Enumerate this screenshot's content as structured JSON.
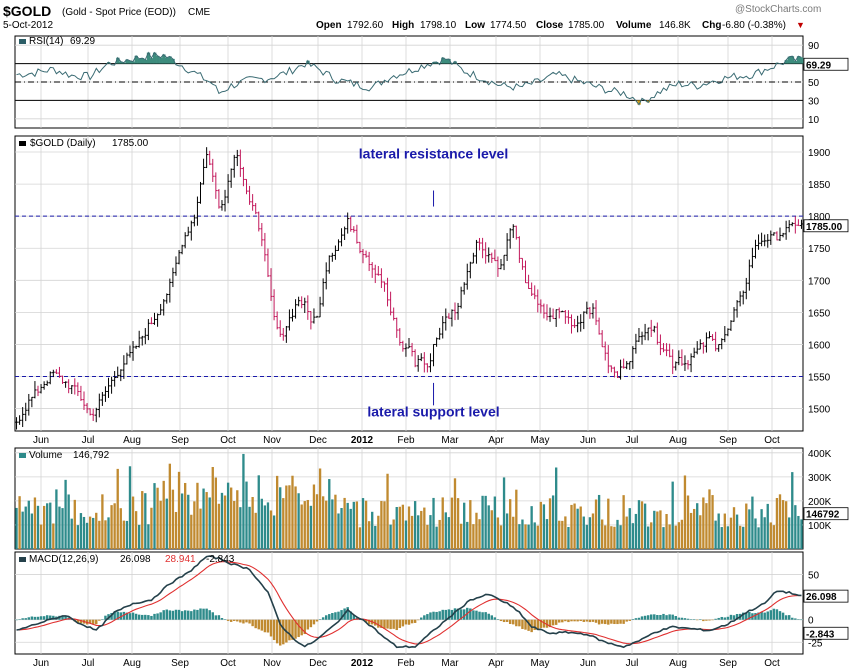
{
  "header": {
    "symbol": "$GOLD",
    "description": "(Gold - Spot Price (EOD))",
    "exchange": "CME",
    "date": "5-Oct-2012",
    "watermark": "@StockCharts.com",
    "open_label": "Open",
    "open": "1792.60",
    "high_label": "High",
    "high": "1798.10",
    "low_label": "Low",
    "low": "1774.50",
    "close_label": "Close",
    "close": "1785.00",
    "volume_label": "Volume",
    "volume": "146.8K",
    "chg_label": "Chg",
    "chg": "-6.80 (-0.38%)"
  },
  "colors": {
    "up": "#000000",
    "down": "#c2185b",
    "vol_up": "#2e8b8b",
    "vol_down": "#c08a30",
    "macd": "#24404a",
    "signal": "#e03030",
    "rsi": "#3a6b73",
    "fill": "#3d8c7d",
    "annotation": "#1a1aaa",
    "grid": "#d4d4d4"
  },
  "x_labels": [
    "Jun",
    "Jul",
    "Aug",
    "Sep",
    "Oct",
    "Nov",
    "Dec",
    "2012",
    "Feb",
    "Mar",
    "Apr",
    "May",
    "Jun",
    "Jul",
    "Aug",
    "Sep",
    "Oct"
  ],
  "chart_data": [
    {
      "type": "line",
      "title": "RSI(14) 69.29",
      "legend": "RSI(14)",
      "legend_value": "69.29",
      "yticks": [
        90,
        70,
        50,
        30,
        10
      ],
      "ylim": [
        0,
        100
      ],
      "guides": [
        70,
        30
      ],
      "midline": 50,
      "last_label": "69.29",
      "anchors": [
        [
          0,
          58
        ],
        [
          6,
          60
        ],
        [
          12,
          64
        ],
        [
          18,
          57
        ],
        [
          24,
          56
        ],
        [
          30,
          70
        ],
        [
          36,
          74
        ],
        [
          42,
          78
        ],
        [
          48,
          79
        ],
        [
          52,
          72
        ],
        [
          56,
          64
        ],
        [
          60,
          56
        ],
        [
          64,
          48
        ],
        [
          66,
          38
        ],
        [
          70,
          46
        ],
        [
          76,
          52
        ],
        [
          82,
          54
        ],
        [
          88,
          60
        ],
        [
          94,
          70
        ],
        [
          98,
          65
        ],
        [
          104,
          53
        ],
        [
          110,
          48
        ],
        [
          116,
          44
        ],
        [
          122,
          56
        ],
        [
          128,
          62
        ],
        [
          134,
          70
        ],
        [
          140,
          75
        ],
        [
          146,
          62
        ],
        [
          152,
          54
        ],
        [
          158,
          46
        ],
        [
          164,
          44
        ],
        [
          170,
          50
        ],
        [
          176,
          58
        ],
        [
          182,
          52
        ],
        [
          188,
          46
        ],
        [
          194,
          40
        ],
        [
          198,
          38
        ],
        [
          204,
          28
        ],
        [
          210,
          40
        ],
        [
          216,
          48
        ],
        [
          222,
          46
        ],
        [
          228,
          52
        ],
        [
          234,
          56
        ],
        [
          240,
          58
        ],
        [
          246,
          66
        ],
        [
          252,
          74
        ],
        [
          258,
          74
        ],
        [
          262,
          72
        ],
        [
          266,
          70
        ]
      ]
    },
    {
      "type": "ohlc",
      "title": "$GOLD (Daily) 1785.00",
      "legend": "$GOLD (Daily)",
      "legend_value": "1785.00",
      "yticks": [
        1900,
        1850,
        1800,
        1750,
        1700,
        1650,
        1600,
        1550,
        1500
      ],
      "ylim": [
        1465,
        1925
      ],
      "last_label": "1785.00",
      "resistance": 1800,
      "support": 1550,
      "annotations": [
        {
          "text": "lateral resistance level",
          "x": 136,
          "y": 1890,
          "mark_x": 136,
          "from": 1840,
          "to": 1815
        },
        {
          "text": "lateral support level",
          "x": 136,
          "y": 1488,
          "mark_x": 136,
          "from": 1540,
          "to": 1505
        }
      ],
      "anchors": [
        [
          0,
          1480
        ],
        [
          4,
          1510
        ],
        [
          8,
          1535
        ],
        [
          12,
          1555
        ],
        [
          16,
          1540
        ],
        [
          20,
          1525
        ],
        [
          24,
          1490
        ],
        [
          26,
          1500
        ],
        [
          30,
          1535
        ],
        [
          34,
          1565
        ],
        [
          38,
          1590
        ],
        [
          42,
          1620
        ],
        [
          46,
          1650
        ],
        [
          50,
          1690
        ],
        [
          54,
          1760
        ],
        [
          58,
          1800
        ],
        [
          60,
          1850
        ],
        [
          62,
          1900
        ],
        [
          64,
          1860
        ],
        [
          66,
          1820
        ],
        [
          68,
          1830
        ],
        [
          70,
          1880
        ],
        [
          72,
          1900
        ],
        [
          74,
          1860
        ],
        [
          76,
          1820
        ],
        [
          78,
          1800
        ],
        [
          80,
          1770
        ],
        [
          82,
          1700
        ],
        [
          84,
          1640
        ],
        [
          86,
          1610
        ],
        [
          88,
          1630
        ],
        [
          90,
          1650
        ],
        [
          92,
          1670
        ],
        [
          94,
          1660
        ],
        [
          96,
          1640
        ],
        [
          98,
          1640
        ],
        [
          100,
          1700
        ],
        [
          102,
          1740
        ],
        [
          104,
          1750
        ],
        [
          106,
          1770
        ],
        [
          108,
          1790
        ],
        [
          110,
          1780
        ],
        [
          112,
          1750
        ],
        [
          114,
          1740
        ],
        [
          116,
          1720
        ],
        [
          118,
          1710
        ],
        [
          120,
          1690
        ],
        [
          122,
          1650
        ],
        [
          124,
          1620
        ],
        [
          126,
          1590
        ],
        [
          128,
          1600
        ],
        [
          130,
          1570
        ],
        [
          132,
          1580
        ],
        [
          134,
          1560
        ],
        [
          136,
          1600
        ],
        [
          138,
          1620
        ],
        [
          140,
          1640
        ],
        [
          142,
          1650
        ],
        [
          144,
          1660
        ],
        [
          146,
          1700
        ],
        [
          148,
          1730
        ],
        [
          150,
          1760
        ],
        [
          152,
          1750
        ],
        [
          154,
          1740
        ],
        [
          156,
          1730
        ],
        [
          158,
          1720
        ],
        [
          160,
          1760
        ],
        [
          162,
          1790
        ],
        [
          164,
          1730
        ],
        [
          166,
          1700
        ],
        [
          168,
          1680
        ],
        [
          170,
          1660
        ],
        [
          172,
          1650
        ],
        [
          174,
          1640
        ],
        [
          176,
          1650
        ],
        [
          178,
          1650
        ],
        [
          180,
          1640
        ],
        [
          182,
          1630
        ],
        [
          184,
          1640
        ],
        [
          186,
          1660
        ],
        [
          188,
          1650
        ],
        [
          190,
          1620
        ],
        [
          192,
          1580
        ],
        [
          194,
          1560
        ],
        [
          196,
          1550
        ],
        [
          198,
          1570
        ],
        [
          200,
          1580
        ],
        [
          202,
          1600
        ],
        [
          204,
          1620
        ],
        [
          206,
          1630
        ],
        [
          208,
          1620
        ],
        [
          210,
          1600
        ],
        [
          212,
          1590
        ],
        [
          214,
          1570
        ],
        [
          216,
          1580
        ],
        [
          218,
          1570
        ],
        [
          220,
          1580
        ],
        [
          222,
          1590
        ],
        [
          224,
          1600
        ],
        [
          226,
          1610
        ],
        [
          228,
          1600
        ],
        [
          230,
          1610
        ],
        [
          232,
          1620
        ],
        [
          234,
          1650
        ],
        [
          236,
          1670
        ],
        [
          238,
          1700
        ],
        [
          240,
          1740
        ],
        [
          242,
          1760
        ],
        [
          244,
          1765
        ],
        [
          246,
          1765
        ],
        [
          248,
          1770
        ],
        [
          250,
          1775
        ],
        [
          252,
          1780
        ],
        [
          254,
          1790
        ],
        [
          256,
          1785
        ]
      ]
    },
    {
      "type": "bar",
      "title": "Volume 146,792",
      "legend": "Volume",
      "legend_value": "146,792",
      "yticks": [
        "400K",
        "300K",
        "200K",
        "100K"
      ],
      "ylim": [
        0,
        420000
      ],
      "last_label": "146792"
    },
    {
      "type": "line",
      "title": "MACD(12,26,9) 26.098, 28.941, -2.843",
      "legend": "MACD(12,26,9)",
      "legend_values": [
        "26.098",
        "28.941",
        "-2.843"
      ],
      "yticks": [
        50,
        0,
        -25
      ],
      "ylim": [
        -38,
        75
      ],
      "last_labels": [
        "26.098",
        "-2.843"
      ],
      "anchors": [
        [
          0,
          -12
        ],
        [
          8,
          -3
        ],
        [
          16,
          5
        ],
        [
          20,
          -3
        ],
        [
          26,
          -12
        ],
        [
          32,
          8
        ],
        [
          38,
          18
        ],
        [
          44,
          22
        ],
        [
          50,
          40
        ],
        [
          56,
          52
        ],
        [
          62,
          70
        ],
        [
          66,
          68
        ],
        [
          70,
          62
        ],
        [
          76,
          56
        ],
        [
          82,
          30
        ],
        [
          86,
          -5
        ],
        [
          90,
          -20
        ],
        [
          94,
          -30
        ],
        [
          98,
          -22
        ],
        [
          104,
          -5
        ],
        [
          108,
          10
        ],
        [
          112,
          2
        ],
        [
          116,
          -8
        ],
        [
          120,
          -20
        ],
        [
          124,
          -30
        ],
        [
          130,
          -30
        ],
        [
          136,
          -12
        ],
        [
          142,
          5
        ],
        [
          148,
          22
        ],
        [
          154,
          28
        ],
        [
          160,
          18
        ],
        [
          164,
          8
        ],
        [
          168,
          -8
        ],
        [
          174,
          -15
        ],
        [
          180,
          -14
        ],
        [
          186,
          -16
        ],
        [
          192,
          -25
        ],
        [
          198,
          -30
        ],
        [
          204,
          -22
        ],
        [
          208,
          -14
        ],
        [
          214,
          -8
        ],
        [
          220,
          -10
        ],
        [
          226,
          -12
        ],
        [
          232,
          -5
        ],
        [
          238,
          8
        ],
        [
          244,
          18
        ],
        [
          248,
          32
        ],
        [
          252,
          30
        ],
        [
          256,
          26
        ]
      ]
    }
  ]
}
